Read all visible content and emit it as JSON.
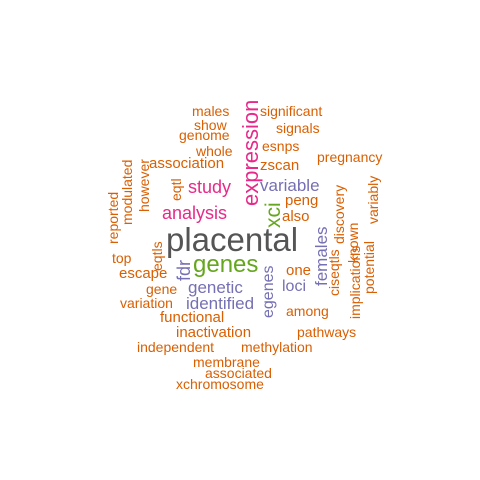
{
  "words": {
    "placental": "placental",
    "genes": "genes",
    "expression": "expression",
    "xci": "xci",
    "analysis": "analysis",
    "study": "study",
    "variable": "variable",
    "genetic": "genetic",
    "identified": "identified",
    "fdr": "fdr",
    "females": "females",
    "egenes": "egenes",
    "loci": "loci",
    "males": "males",
    "significant": "significant",
    "show": "show",
    "signals": "signals",
    "genome": "genome",
    "esnps": "esnps",
    "whole": "whole",
    "pregnancy": "pregnancy",
    "association": "association",
    "zscan": "zscan",
    "modulated": "modulated",
    "however": "however",
    "eqtl": "eqtl",
    "discovery": "discovery",
    "peng": "peng",
    "variably": "variably",
    "reported": "reported",
    "also": "also",
    "known": "known",
    "implications": "implications",
    "eqtls": "eqtls",
    "ciseqtls": "ciseqtls",
    "potential": "potential",
    "top": "top",
    "one": "one",
    "escape": "escape",
    "gene": "gene",
    "variation": "variation",
    "among": "among",
    "functional": "functional",
    "inactivation": "inactivation",
    "pathways": "pathways",
    "independent": "independent",
    "methylation": "methylation",
    "membrane": "membrane",
    "associated": "associated",
    "xchromosome": "xchromosome"
  },
  "colors": {
    "orange": "#d95f02",
    "magenta": "#e7298a",
    "purple": "#7570b3",
    "green": "#66a61e",
    "gray": "#555555"
  }
}
